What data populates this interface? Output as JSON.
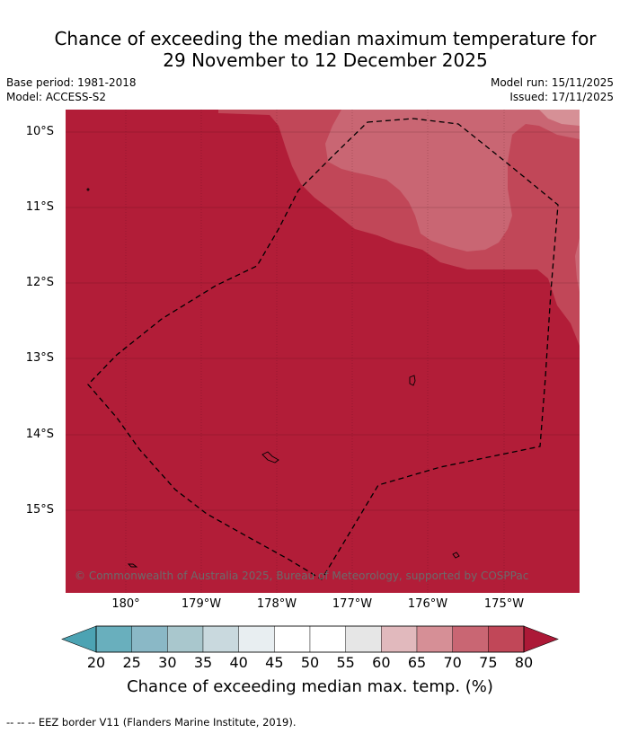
{
  "header": {
    "title_line1": "Chance of exceeding the median maximum temperature for",
    "title_line2": "29 November to 12 December 2025",
    "base_period": "Base period: 1981-2018",
    "model": "Model: ACCESS-S2",
    "model_run": "Model run: 15/11/2025",
    "issued": "Issued: 17/11/2025"
  },
  "map": {
    "latitude_labels": [
      "10°S",
      "11°S",
      "12°S",
      "13°S",
      "14°S",
      "15°S"
    ],
    "longitude_labels": [
      "180°",
      "179°W",
      "178°W",
      "177°W",
      "176°W",
      "175°W"
    ],
    "copyright": "© Commonwealth of Australia 2025, Bureau of Meteorology, supported by COSPPac",
    "colors": {
      "p80": "#b21d38",
      "p75": "#c14758",
      "p70": "#c96673",
      "p65": "#d69096",
      "border": "#000000"
    }
  },
  "colorbar": {
    "title": "Chance of exceeding median max. temp. (%)",
    "ticks": [
      "20",
      "25",
      "30",
      "35",
      "40",
      "45",
      "50",
      "55",
      "60",
      "65",
      "70",
      "75",
      "80"
    ],
    "colors": [
      "#4ca3b3",
      "#69afbd",
      "#8ab8c6",
      "#a9c7cd",
      "#c9d9de",
      "#e8eef1",
      "#ffffff",
      "#ffffff",
      "#e6e6e6",
      "#e1b9bd",
      "#d68f96",
      "#c96673",
      "#c14758",
      "#ac1937"
    ]
  },
  "footer": {
    "note": "--  --  -- EEZ border V11 (Flanders Marine Institute, 2019)."
  }
}
